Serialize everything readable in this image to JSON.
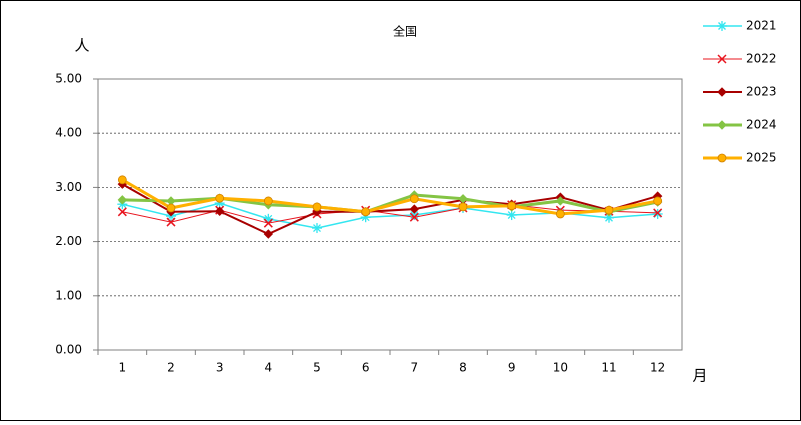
{
  "chart_data": {
    "type": "line",
    "title": "全国",
    "y_label": "人",
    "x_label": "月",
    "categories": [
      "1",
      "2",
      "3",
      "4",
      "5",
      "6",
      "7",
      "8",
      "9",
      "10",
      "11",
      "12"
    ],
    "series": [
      {
        "name": "2021",
        "color": "#33e6f0",
        "marker": "asterisk",
        "width": 1.5,
        "values": [
          2.69,
          2.47,
          2.71,
          2.42,
          2.25,
          2.45,
          2.49,
          2.62,
          2.49,
          2.53,
          2.44,
          2.51
        ]
      },
      {
        "name": "2022",
        "color": "#e8141e",
        "marker": "cross",
        "width": 1,
        "values": [
          2.55,
          2.36,
          2.58,
          2.34,
          2.51,
          2.58,
          2.45,
          2.62,
          2.68,
          2.58,
          2.56,
          2.53
        ]
      },
      {
        "name": "2023",
        "color": "#a80000",
        "marker": "diamond",
        "width": 2,
        "values": [
          3.06,
          2.55,
          2.56,
          2.14,
          2.55,
          2.55,
          2.6,
          2.77,
          2.69,
          2.82,
          2.58,
          2.84
        ]
      },
      {
        "name": "2024",
        "color": "#84c444",
        "marker": "diamond",
        "width": 3,
        "values": [
          2.77,
          2.75,
          2.8,
          2.68,
          2.64,
          2.55,
          2.86,
          2.79,
          2.64,
          2.75,
          2.55,
          2.73
        ]
      },
      {
        "name": "2025",
        "color": "#ffb000",
        "marker": "circle",
        "width": 3,
        "values": [
          3.14,
          2.62,
          2.8,
          2.75,
          2.64,
          2.55,
          2.79,
          2.64,
          2.66,
          2.51,
          2.58,
          2.75
        ]
      }
    ],
    "ylim": [
      0,
      5
    ],
    "yticks": [
      {
        "value": 0,
        "label": "0.00"
      },
      {
        "value": 1,
        "label": "1.00"
      },
      {
        "value": 2,
        "label": "2.00"
      },
      {
        "value": 3,
        "label": "3.00"
      },
      {
        "value": 4,
        "label": "4.00"
      },
      {
        "value": 5,
        "label": "5.00"
      }
    ],
    "grid": true,
    "legend": "right"
  }
}
